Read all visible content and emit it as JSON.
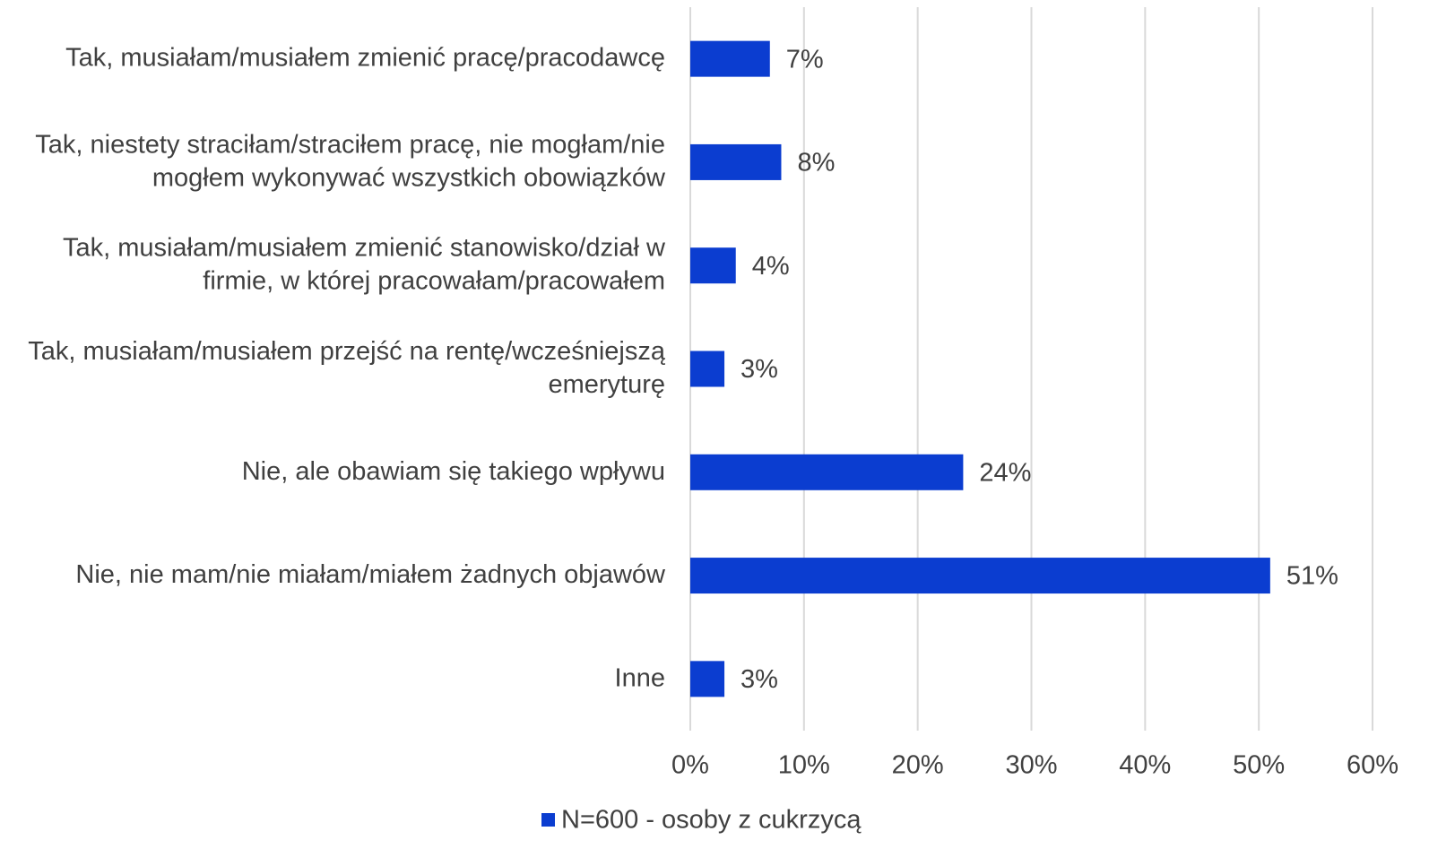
{
  "chart_data": {
    "type": "bar",
    "orientation": "horizontal",
    "categories": [
      "Tak, musiałam/musiałem zmienić pracę/pracodawcę",
      "Tak, niestety straciłam/straciłem pracę, nie mogłam/nie mogłem wykonywać wszystkich obowiązków",
      "Tak, musiałam/musiałem zmienić stanowisko/dział w firmie, w której pracowałam/pracowałem",
      "Tak, musiałam/musiałem przejść na rentę/wcześniejszą emeryturę",
      "Nie, ale obawiam się takiego wpływu",
      "Nie, nie mam/nie miałam/miałem żadnych objawów",
      "Inne"
    ],
    "series": [
      {
        "name": "N=600 - osoby z cukrzycą",
        "color": "#0b3dd0",
        "values": [
          7,
          8,
          4,
          3,
          24,
          51,
          3
        ],
        "value_labels": [
          "7%",
          "8%",
          "4%",
          "3%",
          "24%",
          "51%",
          "3%"
        ]
      }
    ],
    "xlim": [
      0,
      60
    ],
    "xticks": [
      {
        "value": 0,
        "label": "0%"
      },
      {
        "value": 10,
        "label": "10%"
      },
      {
        "value": 20,
        "label": "20%"
      },
      {
        "value": 30,
        "label": "30%"
      },
      {
        "value": 40,
        "label": "40%"
      },
      {
        "value": 50,
        "label": "50%"
      },
      {
        "value": 60,
        "label": "60%"
      }
    ],
    "grid": true,
    "legend": "bottom"
  }
}
